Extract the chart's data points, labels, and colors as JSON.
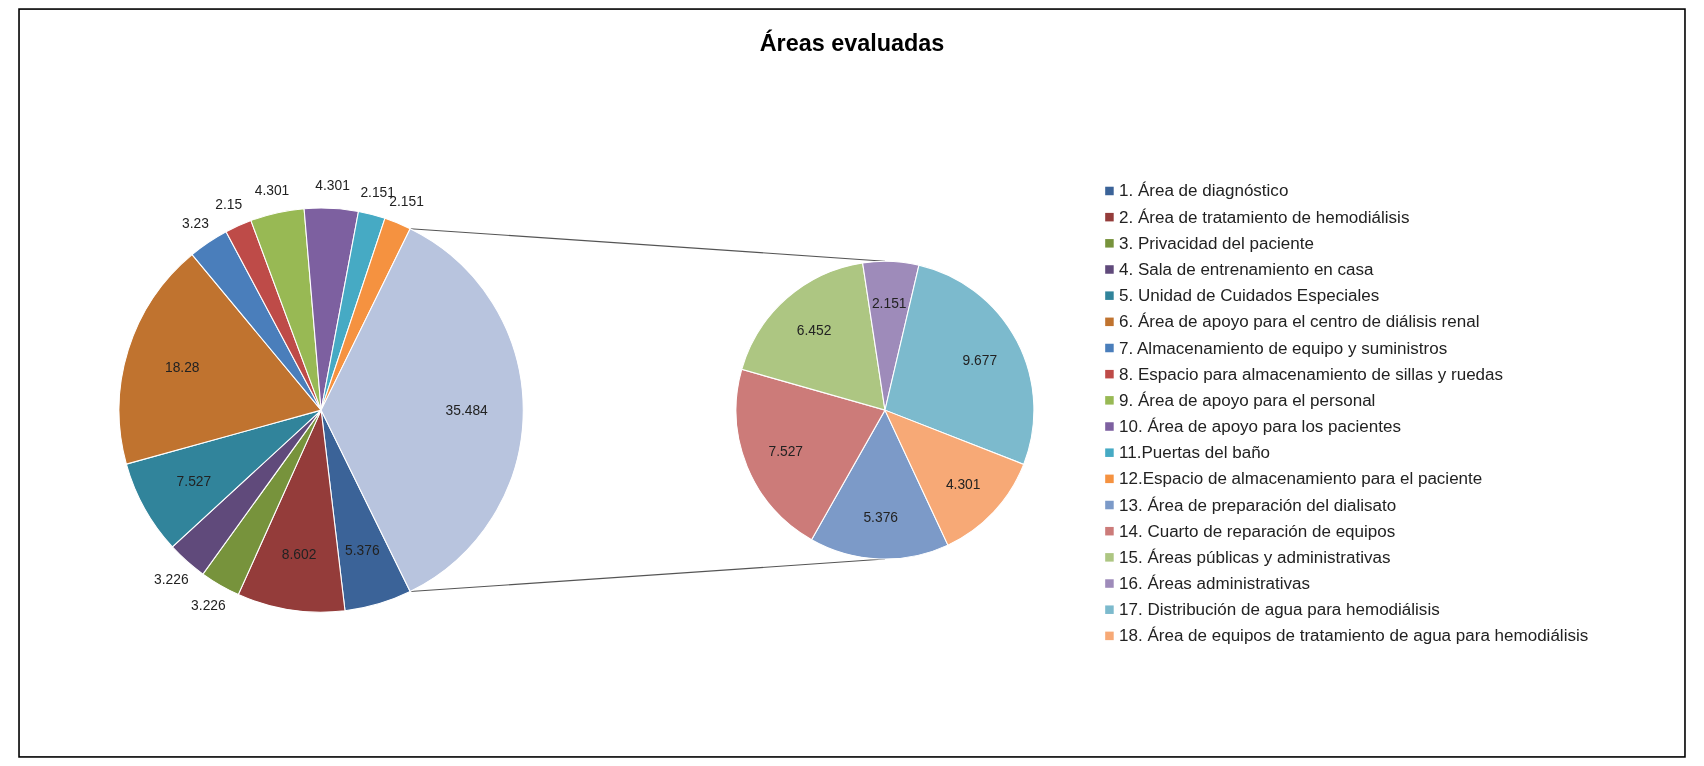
{
  "chart_data": [
    {
      "type": "pie",
      "title": "Áreas evaluadas",
      "categories": [
        "1. Área de diagnóstico",
        "2. Área de tratamiento de hemodiálisis",
        "3. Privacidad del paciente",
        "4. Sala de entrenamiento en casa",
        "5. Unidad de Cuidados Especiales",
        "6. Área de apoyo para el centro de diálisis renal",
        "7. Almacenamiento de equipo y suministros",
        "8. Espacio para almacenamiento de sillas y ruedas",
        "9. Área de apoyo para el personal",
        "10. Área de apoyo para los pacientes",
        "11.Puertas del baño",
        "12.Espacio de almacenamiento para el paciente",
        null
      ],
      "values": [
        5.376,
        8.602,
        3.226,
        3.226,
        7.527,
        18.28,
        3.23,
        2.15,
        4.301,
        4.301,
        2.151,
        2.151,
        35.484
      ],
      "colors": [
        "#3b6398",
        "#943c3a",
        "#77933c",
        "#604a7b",
        "#31849b",
        "#c0732f",
        "#4a7ebb",
        "#be4b48",
        "#98b954",
        "#7d60a0",
        "#46aac4",
        "#f59240",
        "#b8c4de"
      ],
      "data_labels": true,
      "legend": "right"
    },
    {
      "type": "pie",
      "categories": [
        "13. Área de preparación del dialisato",
        "14. Cuarto  de reparación de equipos",
        "15. Áreas públicas y administrativas",
        "16. Áreas administrativas",
        "17. Distribución de agua para hemodiálisis",
        "18. Área de equipos de tratamiento de agua para hemodiálisis"
      ],
      "values": [
        5.376,
        7.527,
        6.452,
        2.151,
        9.677,
        4.301
      ],
      "colors": [
        "#7c9ac8",
        "#cc7b79",
        "#adc682",
        "#9e8bba",
        "#7cbacd",
        "#f7a976"
      ],
      "data_labels": true,
      "legend": "right"
    }
  ]
}
